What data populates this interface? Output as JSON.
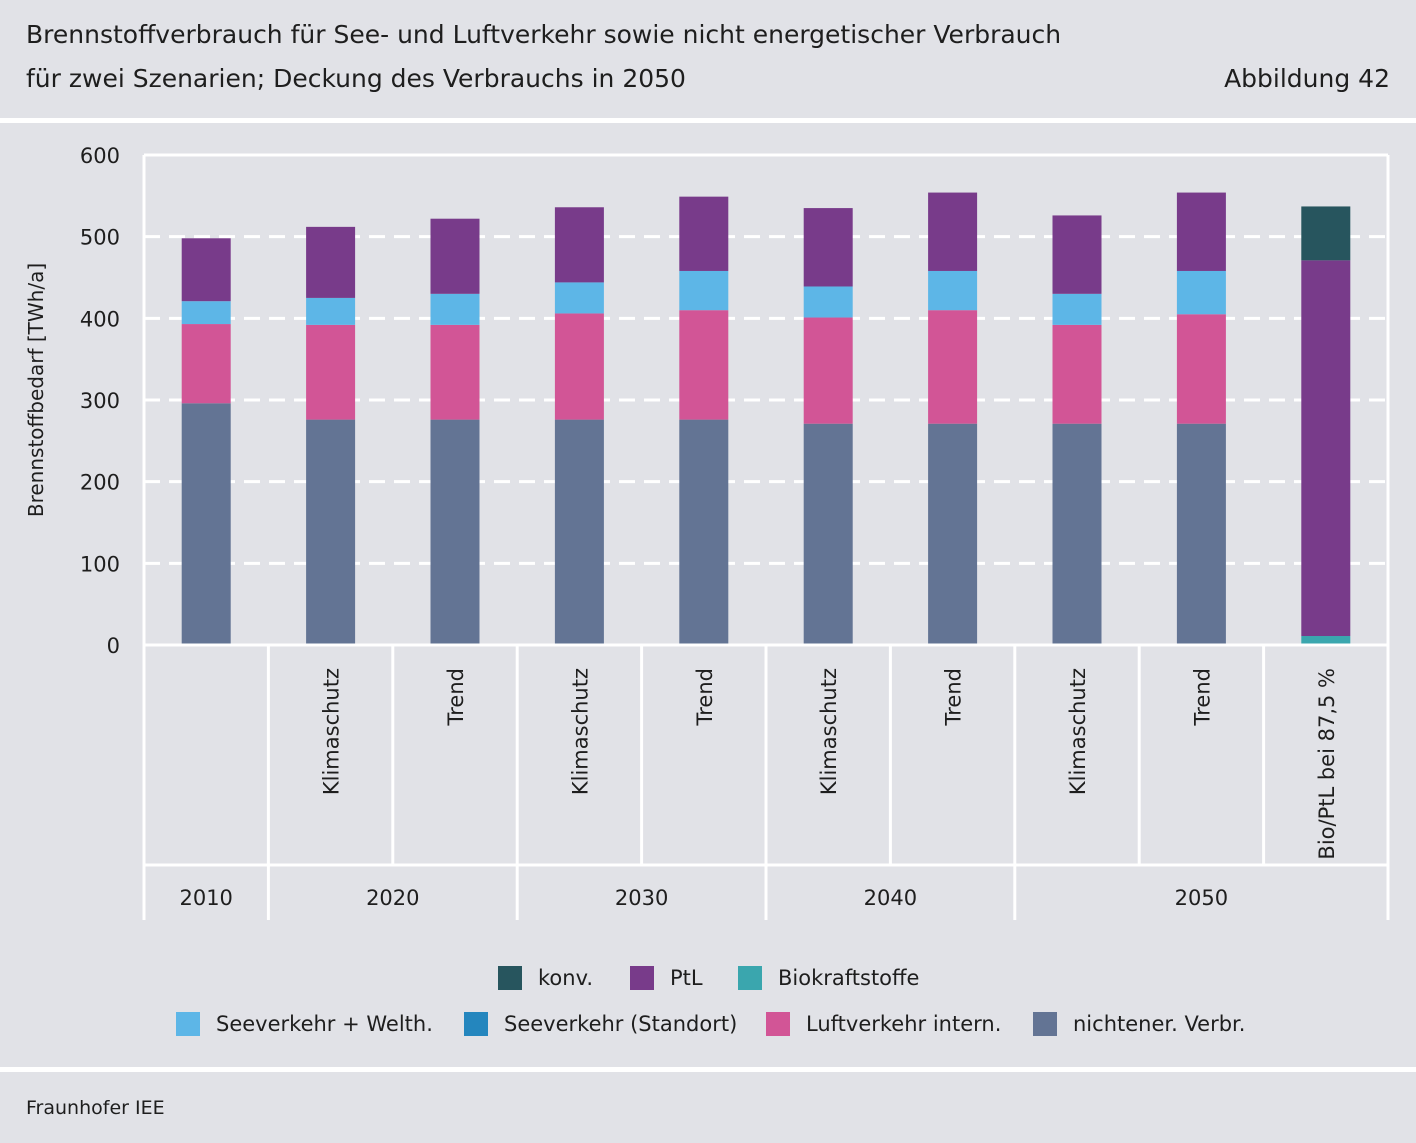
{
  "header": {
    "title_line1": "Brennstoffverbrauch für See- und Luftverkehr sowie nicht energetischer Verbrauch",
    "title_line2": "für zwei Szenarien; Deckung des Verbrauchs in 2050",
    "figure_label": "Abbildung 42"
  },
  "footer": {
    "source": "Fraunhofer IEE"
  },
  "colors": {
    "konv": "#27555e",
    "ptl": "#783b8a",
    "bio": "#3aa6ae",
    "seeverkehr_welth": "#5db6e7",
    "seeverkehr_standort": "#2486be",
    "luftverkehr": "#d25596",
    "nichtener": "#637494"
  },
  "chart_data": {
    "type": "bar",
    "stacked": true,
    "title": "Brennstoffverbrauch für See- und Luftverkehr sowie nicht energetischer Verbrauch für zwei Szenarien; Deckung des Verbrauchs in 2050",
    "xlabel": "",
    "ylabel": "Brennstoffbedarf [TWh/a]",
    "ylim": [
      0,
      600
    ],
    "yticks": [
      0,
      100,
      200,
      300,
      400,
      500,
      600
    ],
    "grid": true,
    "categories": [
      "",
      "Klimaschutz",
      "Trend",
      "Klimaschutz",
      "Trend",
      "Klimaschutz",
      "Trend",
      "Klimaschutz",
      "Trend",
      "Bio/PtL bei 87,5 %"
    ],
    "groups": [
      {
        "label": "2010",
        "span": 1
      },
      {
        "label": "2020",
        "span": 2
      },
      {
        "label": "2030",
        "span": 2
      },
      {
        "label": "2040",
        "span": 2
      },
      {
        "label": "2050",
        "span": 3
      }
    ],
    "series": [
      {
        "name": "nichtener. Verbr.",
        "key": "nichtener",
        "values": [
          296,
          276,
          276,
          276,
          276,
          271,
          271,
          271,
          271,
          0
        ]
      },
      {
        "name": "Luftverkehr intern.",
        "key": "luftverkehr",
        "values": [
          97,
          116,
          116,
          130,
          134,
          130,
          139,
          121,
          134,
          0
        ]
      },
      {
        "name": "Seeverkehr (Standort)",
        "key": "seeverkehr_standort",
        "values": [
          0,
          0,
          0,
          0,
          0,
          0,
          0,
          0,
          0,
          0
        ]
      },
      {
        "name": "Seeverkehr + Welth.",
        "key": "seeverkehr_welth",
        "values": [
          28,
          33,
          38,
          38,
          48,
          38,
          48,
          38,
          53,
          0
        ]
      },
      {
        "name": "Biokraftstoffe",
        "key": "bio",
        "values": [
          0,
          0,
          0,
          0,
          0,
          0,
          0,
          0,
          0,
          11
        ]
      },
      {
        "name": "PtL",
        "key": "ptl",
        "values": [
          77,
          87,
          92,
          92,
          91,
          96,
          96,
          96,
          96,
          460
        ]
      },
      {
        "name": "konv.",
        "key": "konv",
        "values": [
          0,
          0,
          0,
          0,
          0,
          0,
          0,
          0,
          0,
          66
        ]
      }
    ],
    "legend": {
      "row1": [
        {
          "label": "konv.",
          "key": "konv"
        },
        {
          "label": "PtL",
          "key": "ptl"
        },
        {
          "label": "Biokraftstoffe",
          "key": "bio"
        }
      ],
      "row2": [
        {
          "label": "Seeverkehr + Welth.",
          "key": "seeverkehr_welth"
        },
        {
          "label": "Seeverkehr (Standort)",
          "key": "seeverkehr_standort"
        },
        {
          "label": "Luftverkehr intern.",
          "key": "luftverkehr"
        },
        {
          "label": "nichtener. Verbr.",
          "key": "nichtener"
        }
      ]
    }
  }
}
